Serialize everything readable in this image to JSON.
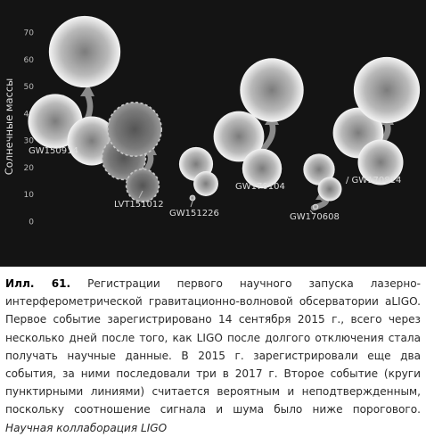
{
  "chart_data": {
    "type": "bubble",
    "ylabel": "Солнечные массы",
    "ylim": [
      0,
      70
    ],
    "yticks": [
      0,
      10,
      20,
      30,
      40,
      50,
      60,
      70
    ],
    "grid": false,
    "events": [
      {
        "label": "GW150914",
        "confirmed": true,
        "initial": [
          36,
          29
        ],
        "final": 62
      },
      {
        "label": "LVT151012",
        "confirmed": false,
        "initial": [
          23,
          13
        ],
        "final": 35
      },
      {
        "label": "GW151226",
        "confirmed": true,
        "initial": [
          14,
          7.5
        ],
        "final": 21
      },
      {
        "label": "GW170104",
        "confirmed": true,
        "initial": [
          31,
          19
        ],
        "final": 49
      },
      {
        "label": "GW170608",
        "confirmed": true,
        "initial": [
          12,
          7
        ],
        "final": 18
      },
      {
        "label": "GW170814",
        "confirmed": true,
        "initial": [
          31,
          25
        ],
        "final": 53
      }
    ],
    "colors": {
      "background": "#141414",
      "text": "#dddddd",
      "axis": "#bbbbbb",
      "arrow": "#8a8a8a"
    }
  },
  "caption": {
    "label": "Илл. 61.",
    "text": "Регистрации первого научного запуска лазерно-интерферометрической гравитационно-волновой обсерватории aLIGO. Первое событие зарегистрировано 14 сентября 2015 г., всего через несколько дней после того, как LIGO после долгого отключения стала получать научные данные. В 2015 г. зарегистрировали еще два события, за ними последовали три в 2017 г. Второе событие (круги пунктирными линиями) считается вероятным и неподтвержденным, поскольку соотношение сигнала и шума было ниже порогового.",
    "credit": "Научная коллаборация LIGO"
  }
}
